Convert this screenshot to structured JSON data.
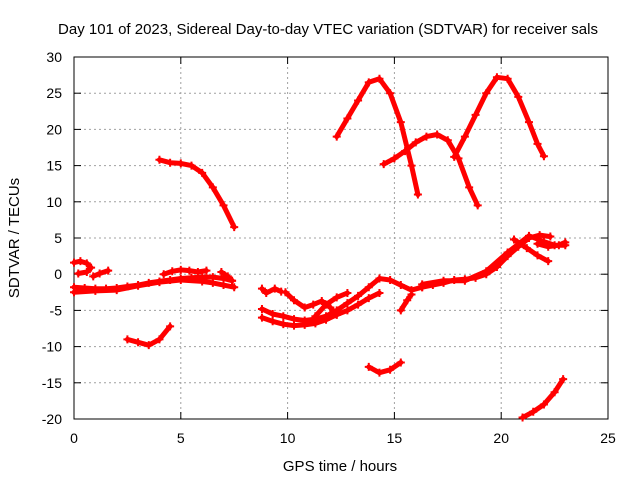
{
  "chart_data": {
    "type": "scatter",
    "title": "Day 101 of 2023, Sidereal Day-to-day VTEC variation (SDTVAR) for receiver sals",
    "xlabel": "GPS time / hours",
    "ylabel": "SDTVAR / TECUs",
    "xlim": [
      0,
      25
    ],
    "ylim": [
      -20,
      30
    ],
    "xticks": [
      0,
      5,
      10,
      15,
      20,
      25
    ],
    "yticks": [
      -20,
      -15,
      -10,
      -5,
      0,
      5,
      10,
      15,
      20,
      25,
      30
    ],
    "grid": true,
    "color": "#ff0000",
    "series": [
      {
        "points": [
          [
            0,
            -1.8
          ],
          [
            0.5,
            -1.9
          ],
          [
            1,
            -2
          ],
          [
            1.5,
            -2
          ],
          [
            2,
            -1.9
          ],
          [
            2.5,
            -1.7
          ],
          [
            3,
            -1.5
          ],
          [
            3.5,
            -1.2
          ],
          [
            4,
            -1
          ],
          [
            4.5,
            -0.8
          ],
          [
            5,
            -0.6
          ],
          [
            5.5,
            -0.5
          ],
          [
            6,
            -0.4
          ],
          [
            6.5,
            -0.4
          ],
          [
            7,
            -0.6
          ],
          [
            7.4,
            -0.9
          ]
        ]
      },
      {
        "points": [
          [
            0,
            -2.5
          ],
          [
            1,
            -2.3
          ],
          [
            2,
            -2.2
          ],
          [
            3,
            -1.6
          ],
          [
            4,
            -1.1
          ],
          [
            5,
            -0.8
          ],
          [
            6,
            -1
          ],
          [
            6.5,
            -1.2
          ],
          [
            7,
            -1.5
          ],
          [
            7.5,
            -1.8
          ]
        ]
      },
      {
        "points": [
          [
            0,
            1.6
          ],
          [
            0.3,
            1.8
          ],
          [
            0.6,
            1.5
          ],
          [
            0.8,
            0.9
          ],
          [
            0.6,
            0.3
          ],
          [
            0.2,
            0.1
          ]
        ]
      },
      {
        "points": [
          [
            0.9,
            -0.3
          ],
          [
            1.2,
            0.1
          ],
          [
            1.6,
            0.5
          ]
        ]
      },
      {
        "points": [
          [
            4.2,
            0
          ],
          [
            4.6,
            0.4
          ],
          [
            5,
            0.6
          ],
          [
            5.4,
            0.5
          ],
          [
            5.8,
            0.3
          ],
          [
            6.2,
            0.5
          ]
        ]
      },
      {
        "points": [
          [
            6.9,
            0.3
          ],
          [
            7.2,
            -0.3
          ],
          [
            7.4,
            -0.9
          ]
        ]
      },
      {
        "points": [
          [
            4.0,
            15.8
          ],
          [
            4.5,
            15.4
          ],
          [
            5,
            15.3
          ],
          [
            5.5,
            15
          ],
          [
            6,
            14
          ],
          [
            6.5,
            12
          ],
          [
            7,
            9.5
          ],
          [
            7.5,
            6.5
          ]
        ]
      },
      {
        "points": [
          [
            2.5,
            -9
          ],
          [
            3,
            -9.4
          ],
          [
            3.5,
            -9.8
          ],
          [
            4,
            -9
          ],
          [
            4.5,
            -7.2
          ]
        ]
      },
      {
        "points": [
          [
            8.8,
            -2
          ],
          [
            9,
            -2.6
          ],
          [
            9.4,
            -2
          ],
          [
            9.7,
            -2.4
          ]
        ]
      },
      {
        "points": [
          [
            8.8,
            -4.8
          ],
          [
            9.3,
            -5.5
          ],
          [
            9.8,
            -5.8
          ],
          [
            10.3,
            -6.2
          ],
          [
            10.8,
            -6.4
          ],
          [
            11.3,
            -6.2
          ],
          [
            11.8,
            -5.8
          ],
          [
            12.3,
            -5
          ],
          [
            12.8,
            -4
          ],
          [
            13.3,
            -3
          ],
          [
            13.8,
            -1.8
          ],
          [
            14.3,
            -0.6
          ],
          [
            14.8,
            -0.8
          ],
          [
            15.3,
            -1.5
          ],
          [
            15.8,
            -2.2
          ],
          [
            16.3,
            -1.8
          ]
        ]
      },
      {
        "points": [
          [
            8.8,
            -6
          ],
          [
            9.3,
            -6.5
          ],
          [
            9.8,
            -6.9
          ],
          [
            10.3,
            -7.1
          ],
          [
            10.8,
            -7
          ],
          [
            11.3,
            -6.8
          ],
          [
            11.8,
            -6.3
          ],
          [
            12.3,
            -5.6
          ],
          [
            12.8,
            -5
          ],
          [
            13.3,
            -4.2
          ],
          [
            13.8,
            -3.3
          ],
          [
            14.3,
            -2.6
          ]
        ]
      },
      {
        "points": [
          [
            9.9,
            -2.5
          ],
          [
            10.3,
            -3.6
          ],
          [
            10.8,
            -4.6
          ],
          [
            11.2,
            -4.2
          ],
          [
            11.6,
            -3.7
          ],
          [
            12.0,
            -4.6
          ],
          [
            12.3,
            -5.6
          ]
        ]
      },
      {
        "points": [
          [
            11.3,
            -5.8
          ],
          [
            11.8,
            -4.2
          ],
          [
            12.3,
            -3.2
          ],
          [
            12.8,
            -2.6
          ]
        ]
      },
      {
        "points": [
          [
            16.3,
            -1.8
          ],
          [
            16.8,
            -1.5
          ],
          [
            17.3,
            -1.2
          ],
          [
            17.8,
            -0.8
          ],
          [
            18.3,
            -0.7
          ],
          [
            18.8,
            -0.5
          ],
          [
            19.3,
            0
          ],
          [
            19.8,
            1
          ],
          [
            20.3,
            2.5
          ],
          [
            20.8,
            3.8
          ],
          [
            21.3,
            5
          ],
          [
            21.8,
            5.4
          ],
          [
            22.3,
            5.2
          ]
        ]
      },
      {
        "points": [
          [
            16.3,
            -1.4
          ],
          [
            17.3,
            -0.9
          ],
          [
            18.3,
            -0.9
          ],
          [
            19.3,
            0.4
          ],
          [
            20.3,
            3
          ],
          [
            21.3,
            5.3
          ],
          [
            22,
            4.5
          ],
          [
            22.5,
            4
          ],
          [
            23,
            4
          ]
        ]
      },
      {
        "points": [
          [
            20.6,
            4.8
          ],
          [
            21.2,
            3.6
          ],
          [
            21.7,
            2.6
          ],
          [
            22.2,
            1.8
          ]
        ]
      },
      {
        "points": [
          [
            15.3,
            -5
          ],
          [
            15.6,
            -3.6
          ],
          [
            15.8,
            -2.8
          ]
        ]
      },
      {
        "points": [
          [
            21.7,
            4.2
          ],
          [
            22.2,
            3.8
          ],
          [
            22.7,
            4
          ],
          [
            23,
            4.4
          ]
        ]
      },
      {
        "points": [
          [
            12.3,
            19
          ],
          [
            12.8,
            21.5
          ],
          [
            13.3,
            24
          ],
          [
            13.8,
            26.5
          ],
          [
            14.3,
            27
          ],
          [
            14.8,
            25
          ],
          [
            15.3,
            21
          ],
          [
            15.8,
            15
          ],
          [
            16.1,
            11
          ]
        ]
      },
      {
        "points": [
          [
            14.5,
            15.2
          ],
          [
            15,
            16
          ],
          [
            15.5,
            17
          ],
          [
            16,
            18.2
          ],
          [
            16.5,
            19
          ],
          [
            17,
            19.3
          ],
          [
            17.5,
            18.5
          ],
          [
            18,
            16
          ],
          [
            18.5,
            12
          ],
          [
            18.9,
            9.5
          ]
        ]
      },
      {
        "points": [
          [
            17.8,
            16.2
          ],
          [
            18.3,
            19
          ],
          [
            18.8,
            22
          ],
          [
            19.3,
            25
          ],
          [
            19.8,
            27.2
          ],
          [
            20.3,
            27
          ],
          [
            20.8,
            24.5
          ],
          [
            21.3,
            21
          ],
          [
            21.7,
            18
          ],
          [
            22.0,
            16.3
          ]
        ]
      },
      {
        "points": [
          [
            13.8,
            -12.8
          ],
          [
            14.3,
            -13.6
          ],
          [
            14.8,
            -13.2
          ],
          [
            15.3,
            -12.2
          ]
        ]
      },
      {
        "points": [
          [
            21.0,
            -19.8
          ],
          [
            21.5,
            -19
          ],
          [
            22,
            -18
          ],
          [
            22.5,
            -16.3
          ],
          [
            22.9,
            -14.5
          ]
        ]
      }
    ]
  }
}
